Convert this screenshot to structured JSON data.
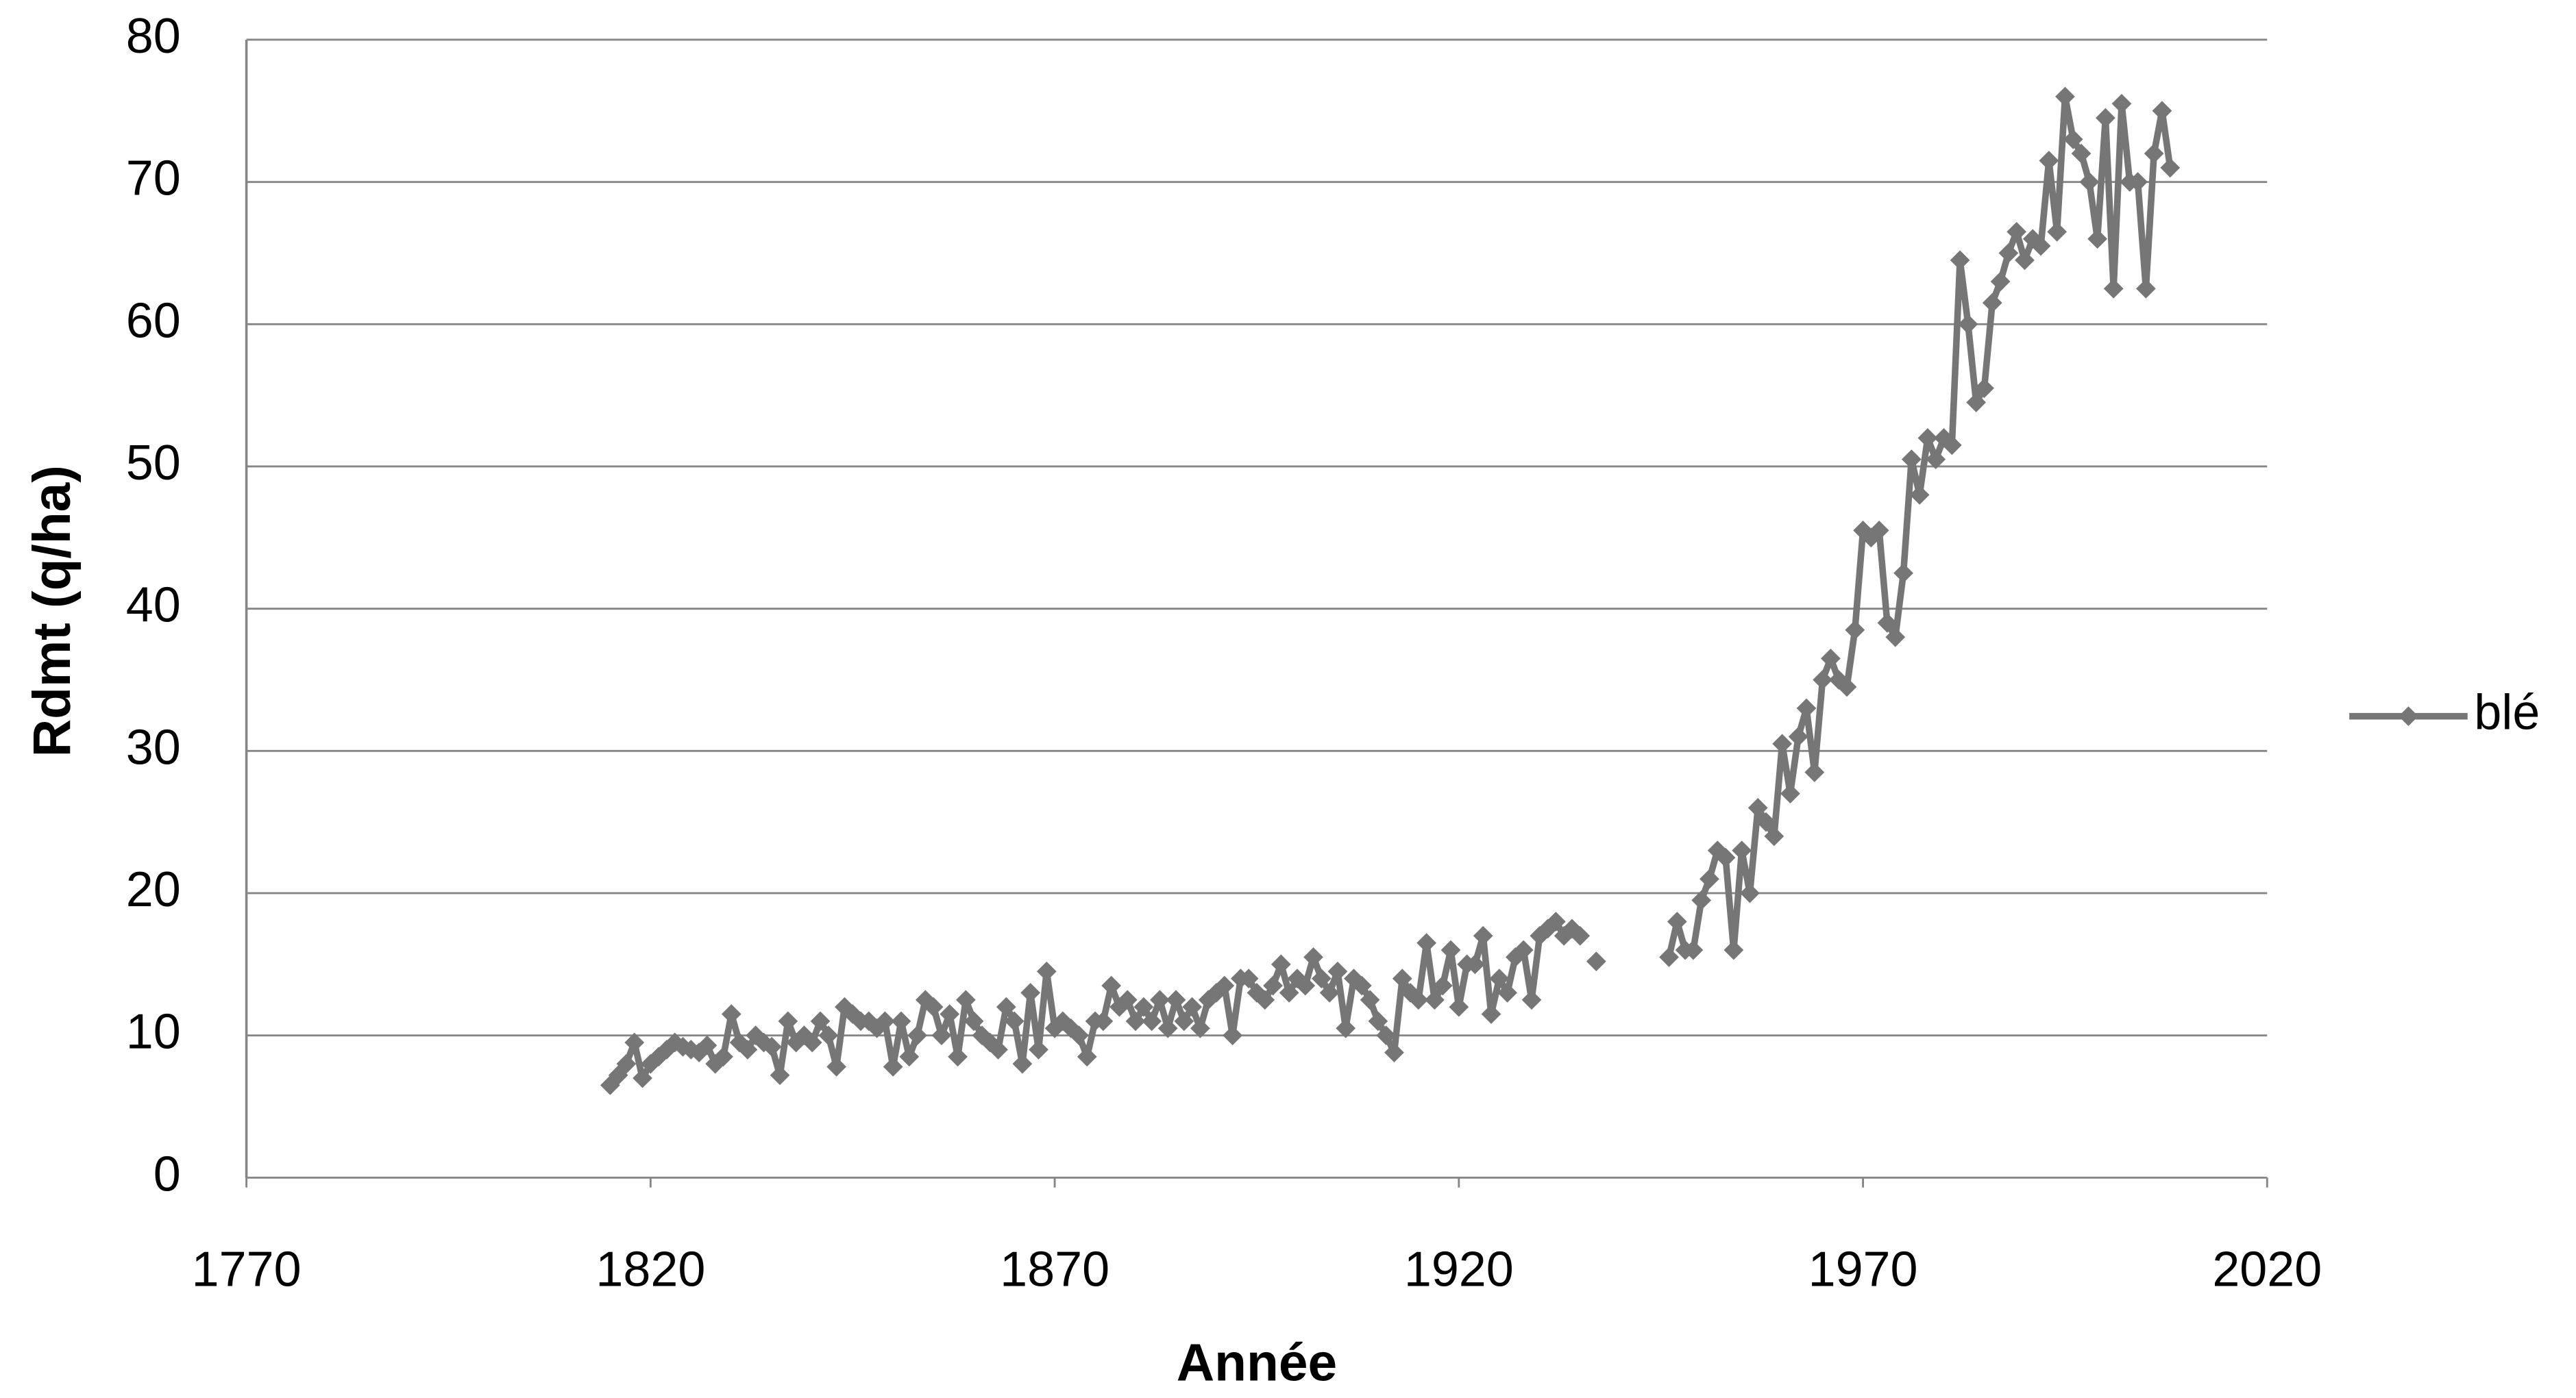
{
  "chart_data": {
    "type": "line",
    "x_label": "Année",
    "y_label": "Rdmt (q/ha)",
    "xlim": [
      1770,
      2020
    ],
    "xticks": [
      1770,
      1820,
      1870,
      1920,
      1970,
      2020
    ],
    "ylim": [
      0,
      80
    ],
    "yticks": [
      0,
      10,
      20,
      30,
      40,
      50,
      60,
      70,
      80
    ],
    "grid": true,
    "legend": "right",
    "x": [
      1815,
      1816,
      1817,
      1818,
      1819,
      1820,
      1821,
      1822,
      1823,
      1824,
      1825,
      1826,
      1827,
      1828,
      1829,
      1830,
      1831,
      1832,
      1833,
      1834,
      1835,
      1836,
      1837,
      1838,
      1839,
      1840,
      1841,
      1842,
      1843,
      1844,
      1845,
      1846,
      1847,
      1848,
      1849,
      1850,
      1851,
      1852,
      1853,
      1854,
      1855,
      1856,
      1857,
      1858,
      1859,
      1860,
      1861,
      1862,
      1863,
      1864,
      1865,
      1866,
      1867,
      1868,
      1869,
      1870,
      1871,
      1872,
      1873,
      1874,
      1875,
      1876,
      1877,
      1878,
      1879,
      1880,
      1881,
      1882,
      1883,
      1884,
      1885,
      1886,
      1887,
      1888,
      1889,
      1890,
      1891,
      1892,
      1893,
      1894,
      1895,
      1896,
      1897,
      1898,
      1899,
      1900,
      1901,
      1902,
      1903,
      1904,
      1905,
      1906,
      1907,
      1908,
      1909,
      1910,
      1911,
      1912,
      1913,
      1914,
      1915,
      1916,
      1917,
      1918,
      1919,
      1920,
      1921,
      1922,
      1923,
      1924,
      1925,
      1926,
      1927,
      1928,
      1929,
      1930,
      1931,
      1932,
      1933,
      1934,
      1935,
      1936,
      1937,
      1938,
      1939,
      1940,
      1941,
      1942,
      1943,
      1944,
      1945,
      1946,
      1947,
      1948,
      1949,
      1950,
      1951,
      1952,
      1953,
      1954,
      1955,
      1956,
      1957,
      1958,
      1959,
      1960,
      1961,
      1962,
      1963,
      1964,
      1965,
      1966,
      1967,
      1968,
      1969,
      1970,
      1971,
      1972,
      1973,
      1974,
      1975,
      1976,
      1977,
      1978,
      1979,
      1980,
      1981,
      1982,
      1983,
      1984,
      1985,
      1986,
      1987,
      1988,
      1989,
      1990,
      1991,
      1992,
      1993,
      1994,
      1995,
      1996,
      1997,
      1998,
      1999,
      2000,
      2001,
      2002,
      2003,
      2004,
      2005,
      2006,
      2007,
      2008
    ],
    "series": [
      {
        "name": "blé",
        "color": "#767676",
        "values": [
          6.5,
          7.2,
          8,
          9.5,
          7,
          8,
          8.5,
          9,
          9.5,
          9.2,
          9,
          8.8,
          9.3,
          8,
          8.5,
          11.5,
          9.5,
          9,
          10,
          9.5,
          9.2,
          7.2,
          11,
          9.5,
          10,
          9.5,
          11,
          10,
          7.8,
          12,
          11.5,
          11,
          11,
          10.5,
          11,
          7.8,
          11,
          8.5,
          10,
          12.5,
          12,
          10,
          11.5,
          8.5,
          12.5,
          11,
          10,
          9.5,
          9,
          12,
          11,
          8,
          13,
          9,
          14.5,
          10.5,
          11,
          10.5,
          10,
          8.5,
          11,
          11,
          13.5,
          12,
          12.5,
          11,
          12,
          11,
          12.5,
          10.5,
          12.5,
          11,
          12,
          10.5,
          12.5,
          13,
          13.5,
          10,
          14,
          14,
          13,
          12.5,
          13.5,
          15,
          13,
          14,
          13.5,
          15.5,
          14,
          13,
          14.5,
          10.5,
          14,
          13.5,
          12.5,
          11,
          10,
          8.8,
          14,
          13,
          12.5,
          16.5,
          12.5,
          13.5,
          16,
          12,
          15,
          15,
          17,
          11.5,
          14,
          13,
          15.5,
          16,
          12.5,
          17,
          17.5,
          18,
          17,
          17.5,
          17,
          null,
          15.2,
          null,
          null,
          null,
          null,
          null,
          null,
          null,
          null,
          15.5,
          18,
          16,
          16,
          19.5,
          21,
          23,
          22.5,
          16,
          23,
          20,
          26,
          25,
          24,
          30.5,
          27,
          31,
          33,
          28.5,
          35,
          36.5,
          35,
          34.5,
          38.5,
          45.5,
          45,
          45.5,
          39,
          38,
          42.5,
          50.5,
          48,
          52,
          50.5,
          52,
          51.5,
          64.5,
          60,
          54.5,
          55.5,
          61.5,
          63,
          65,
          66.5,
          64.5,
          66,
          65.5,
          71.5,
          66.5,
          76,
          73,
          72,
          70,
          66,
          74.5,
          62.5,
          75.5,
          70,
          70,
          62.5,
          72,
          75,
          71
        ]
      }
    ]
  }
}
